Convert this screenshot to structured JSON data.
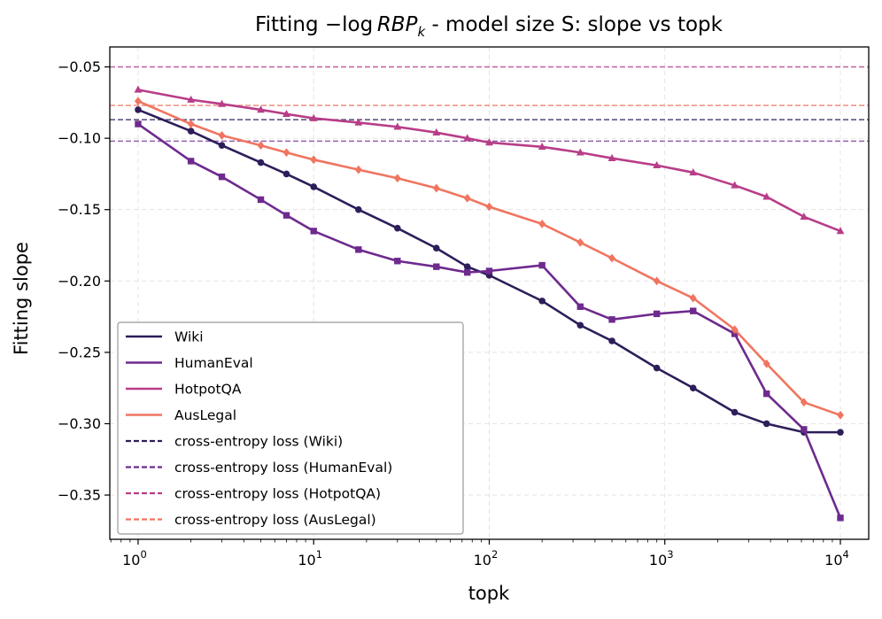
{
  "chart_data": {
    "type": "line",
    "title_parts": {
      "prefix": "Fitting −log ",
      "rbp": "RBP",
      "sub": "k",
      "suffix": " - model size S: slope vs topk"
    },
    "xlabel": "topk",
    "ylabel": "Fitting slope",
    "xscale": "log",
    "xlim": [
      0.69,
      14500
    ],
    "ylim": [
      -0.381,
      -0.036
    ],
    "x_ticks": [
      {
        "value": 1,
        "base": "10",
        "exp": "0"
      },
      {
        "value": 10,
        "base": "10",
        "exp": "1"
      },
      {
        "value": 100,
        "base": "10",
        "exp": "2"
      },
      {
        "value": 1000,
        "base": "10",
        "exp": "3"
      },
      {
        "value": 10000,
        "base": "10",
        "exp": "4"
      }
    ],
    "y_ticks": [
      {
        "value": -0.05,
        "label": "−0.05"
      },
      {
        "value": -0.1,
        "label": "−0.10"
      },
      {
        "value": -0.15,
        "label": "−0.15"
      },
      {
        "value": -0.2,
        "label": "−0.20"
      },
      {
        "value": -0.25,
        "label": "−0.25"
      },
      {
        "value": -0.3,
        "label": "−0.30"
      },
      {
        "value": -0.35,
        "label": "−0.35"
      }
    ],
    "grid": true,
    "legend_position": "lower-left",
    "series": [
      {
        "name": "Wiki",
        "color": "#2d1e5a",
        "marker": "circle",
        "x": [
          1,
          2,
          3,
          5,
          7,
          10,
          18,
          30,
          50,
          75,
          100,
          200,
          330,
          500,
          900,
          1450,
          2500,
          3800,
          6200,
          10000
        ],
        "y": [
          -0.08,
          -0.095,
          -0.105,
          -0.117,
          -0.125,
          -0.134,
          -0.15,
          -0.163,
          -0.177,
          -0.19,
          -0.196,
          -0.214,
          -0.231,
          -0.242,
          -0.261,
          -0.275,
          -0.292,
          -0.3,
          -0.306,
          -0.306
        ]
      },
      {
        "name": "HumanEval",
        "color": "#6e2a8e",
        "marker": "square",
        "x": [
          1,
          2,
          3,
          5,
          7,
          10,
          18,
          30,
          50,
          75,
          100,
          200,
          330,
          500,
          900,
          1450,
          2500,
          3800,
          6200,
          10000
        ],
        "y": [
          -0.09,
          -0.116,
          -0.127,
          -0.143,
          -0.154,
          -0.165,
          -0.178,
          -0.186,
          -0.19,
          -0.194,
          -0.193,
          -0.189,
          -0.218,
          -0.227,
          -0.223,
          -0.221,
          -0.237,
          -0.279,
          -0.304,
          -0.366
        ]
      },
      {
        "name": "HotpotQA",
        "color": "#b83d88",
        "marker": "triangle",
        "x": [
          1,
          2,
          3,
          5,
          7,
          10,
          18,
          30,
          50,
          75,
          100,
          200,
          330,
          500,
          900,
          1450,
          2500,
          3800,
          6200,
          10000
        ],
        "y": [
          -0.066,
          -0.073,
          -0.076,
          -0.08,
          -0.083,
          -0.086,
          -0.089,
          -0.092,
          -0.096,
          -0.1,
          -0.103,
          -0.106,
          -0.11,
          -0.114,
          -0.119,
          -0.124,
          -0.133,
          -0.141,
          -0.155,
          -0.165
        ]
      },
      {
        "name": "AusLegal",
        "color": "#f07560",
        "marker": "diamond",
        "x": [
          1,
          2,
          3,
          5,
          7,
          10,
          18,
          30,
          50,
          75,
          100,
          200,
          330,
          500,
          900,
          1450,
          2500,
          3800,
          6200,
          10000
        ],
        "y": [
          -0.074,
          -0.09,
          -0.098,
          -0.105,
          -0.11,
          -0.115,
          -0.122,
          -0.128,
          -0.135,
          -0.142,
          -0.148,
          -0.16,
          -0.173,
          -0.184,
          -0.2,
          -0.212,
          -0.234,
          -0.258,
          -0.285,
          -0.294
        ]
      }
    ],
    "reference_lines": [
      {
        "name": "cross-entropy loss (Wiki)",
        "y": -0.087,
        "color": "#2d1e5a"
      },
      {
        "name": "cross-entropy loss (HumanEval)",
        "y": -0.102,
        "color": "#6e2a8e"
      },
      {
        "name": "cross-entropy loss (HotpotQA)",
        "y": -0.05,
        "color": "#b83d88"
      },
      {
        "name": "cross-entropy loss (AusLegal)",
        "y": -0.077,
        "color": "#f07560"
      }
    ]
  }
}
